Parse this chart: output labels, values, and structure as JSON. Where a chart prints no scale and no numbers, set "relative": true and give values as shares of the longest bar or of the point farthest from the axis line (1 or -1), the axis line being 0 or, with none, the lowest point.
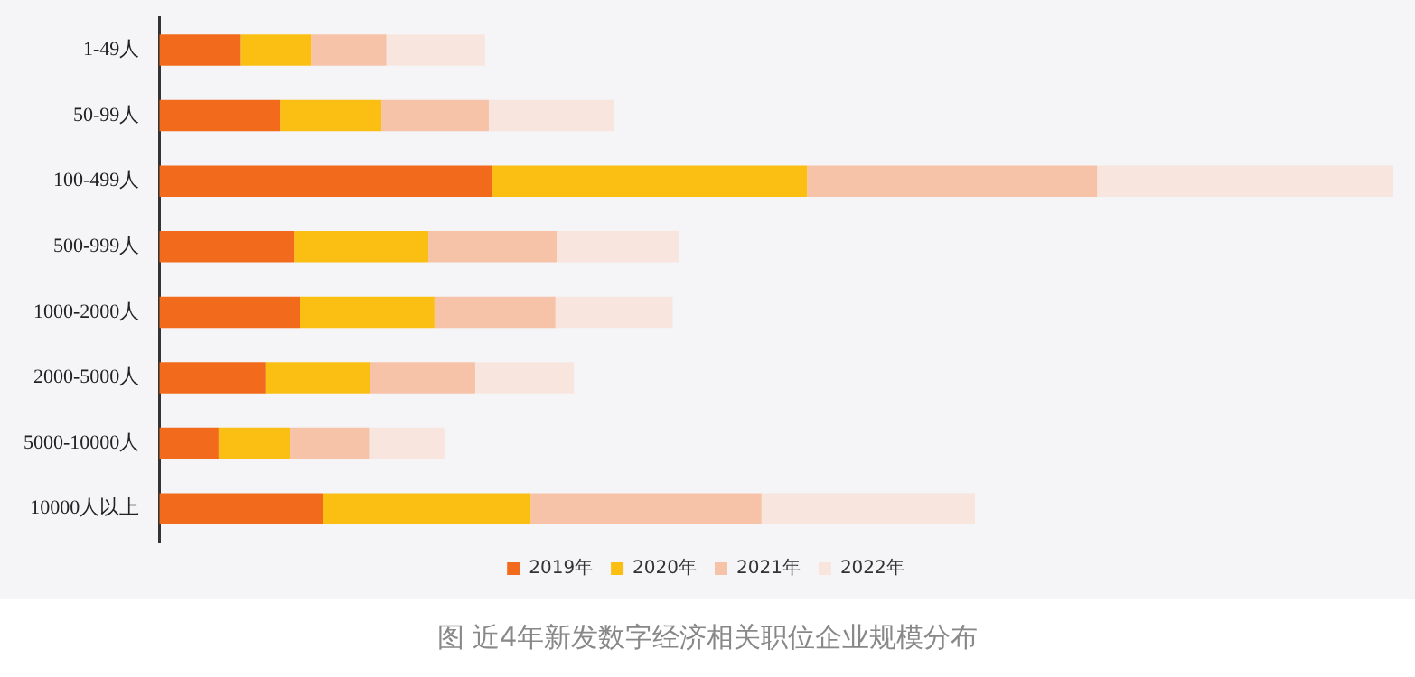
{
  "chart_data": {
    "type": "bar",
    "orientation": "horizontal",
    "stacked": true,
    "relative": true,
    "title": "图 近4年新发数字经济相关职位企业规模分布",
    "legend": "bottom",
    "categories": [
      "1-49人",
      "50-99人",
      "100-499人",
      "500-999人",
      "1000-2000人",
      "2000-5000人",
      "5000-10000人",
      "10000人以上"
    ],
    "series": [
      {
        "name": "2019年",
        "color": "#f26b1d",
        "values": [
          0.066,
          0.098,
          0.27,
          0.109,
          0.114,
          0.086,
          0.048,
          0.133
        ]
      },
      {
        "name": "2020年",
        "color": "#fbbf14",
        "values": [
          0.057,
          0.082,
          0.255,
          0.109,
          0.109,
          0.085,
          0.058,
          0.168
        ]
      },
      {
        "name": "2021年",
        "color": "#f6c3a8",
        "values": [
          0.061,
          0.087,
          0.235,
          0.104,
          0.098,
          0.085,
          0.064,
          0.187
        ]
      },
      {
        "name": "2022年",
        "color": "#f8e6de",
        "values": [
          0.08,
          0.101,
          0.24,
          0.099,
          0.095,
          0.08,
          0.061,
          0.173
        ]
      }
    ]
  }
}
